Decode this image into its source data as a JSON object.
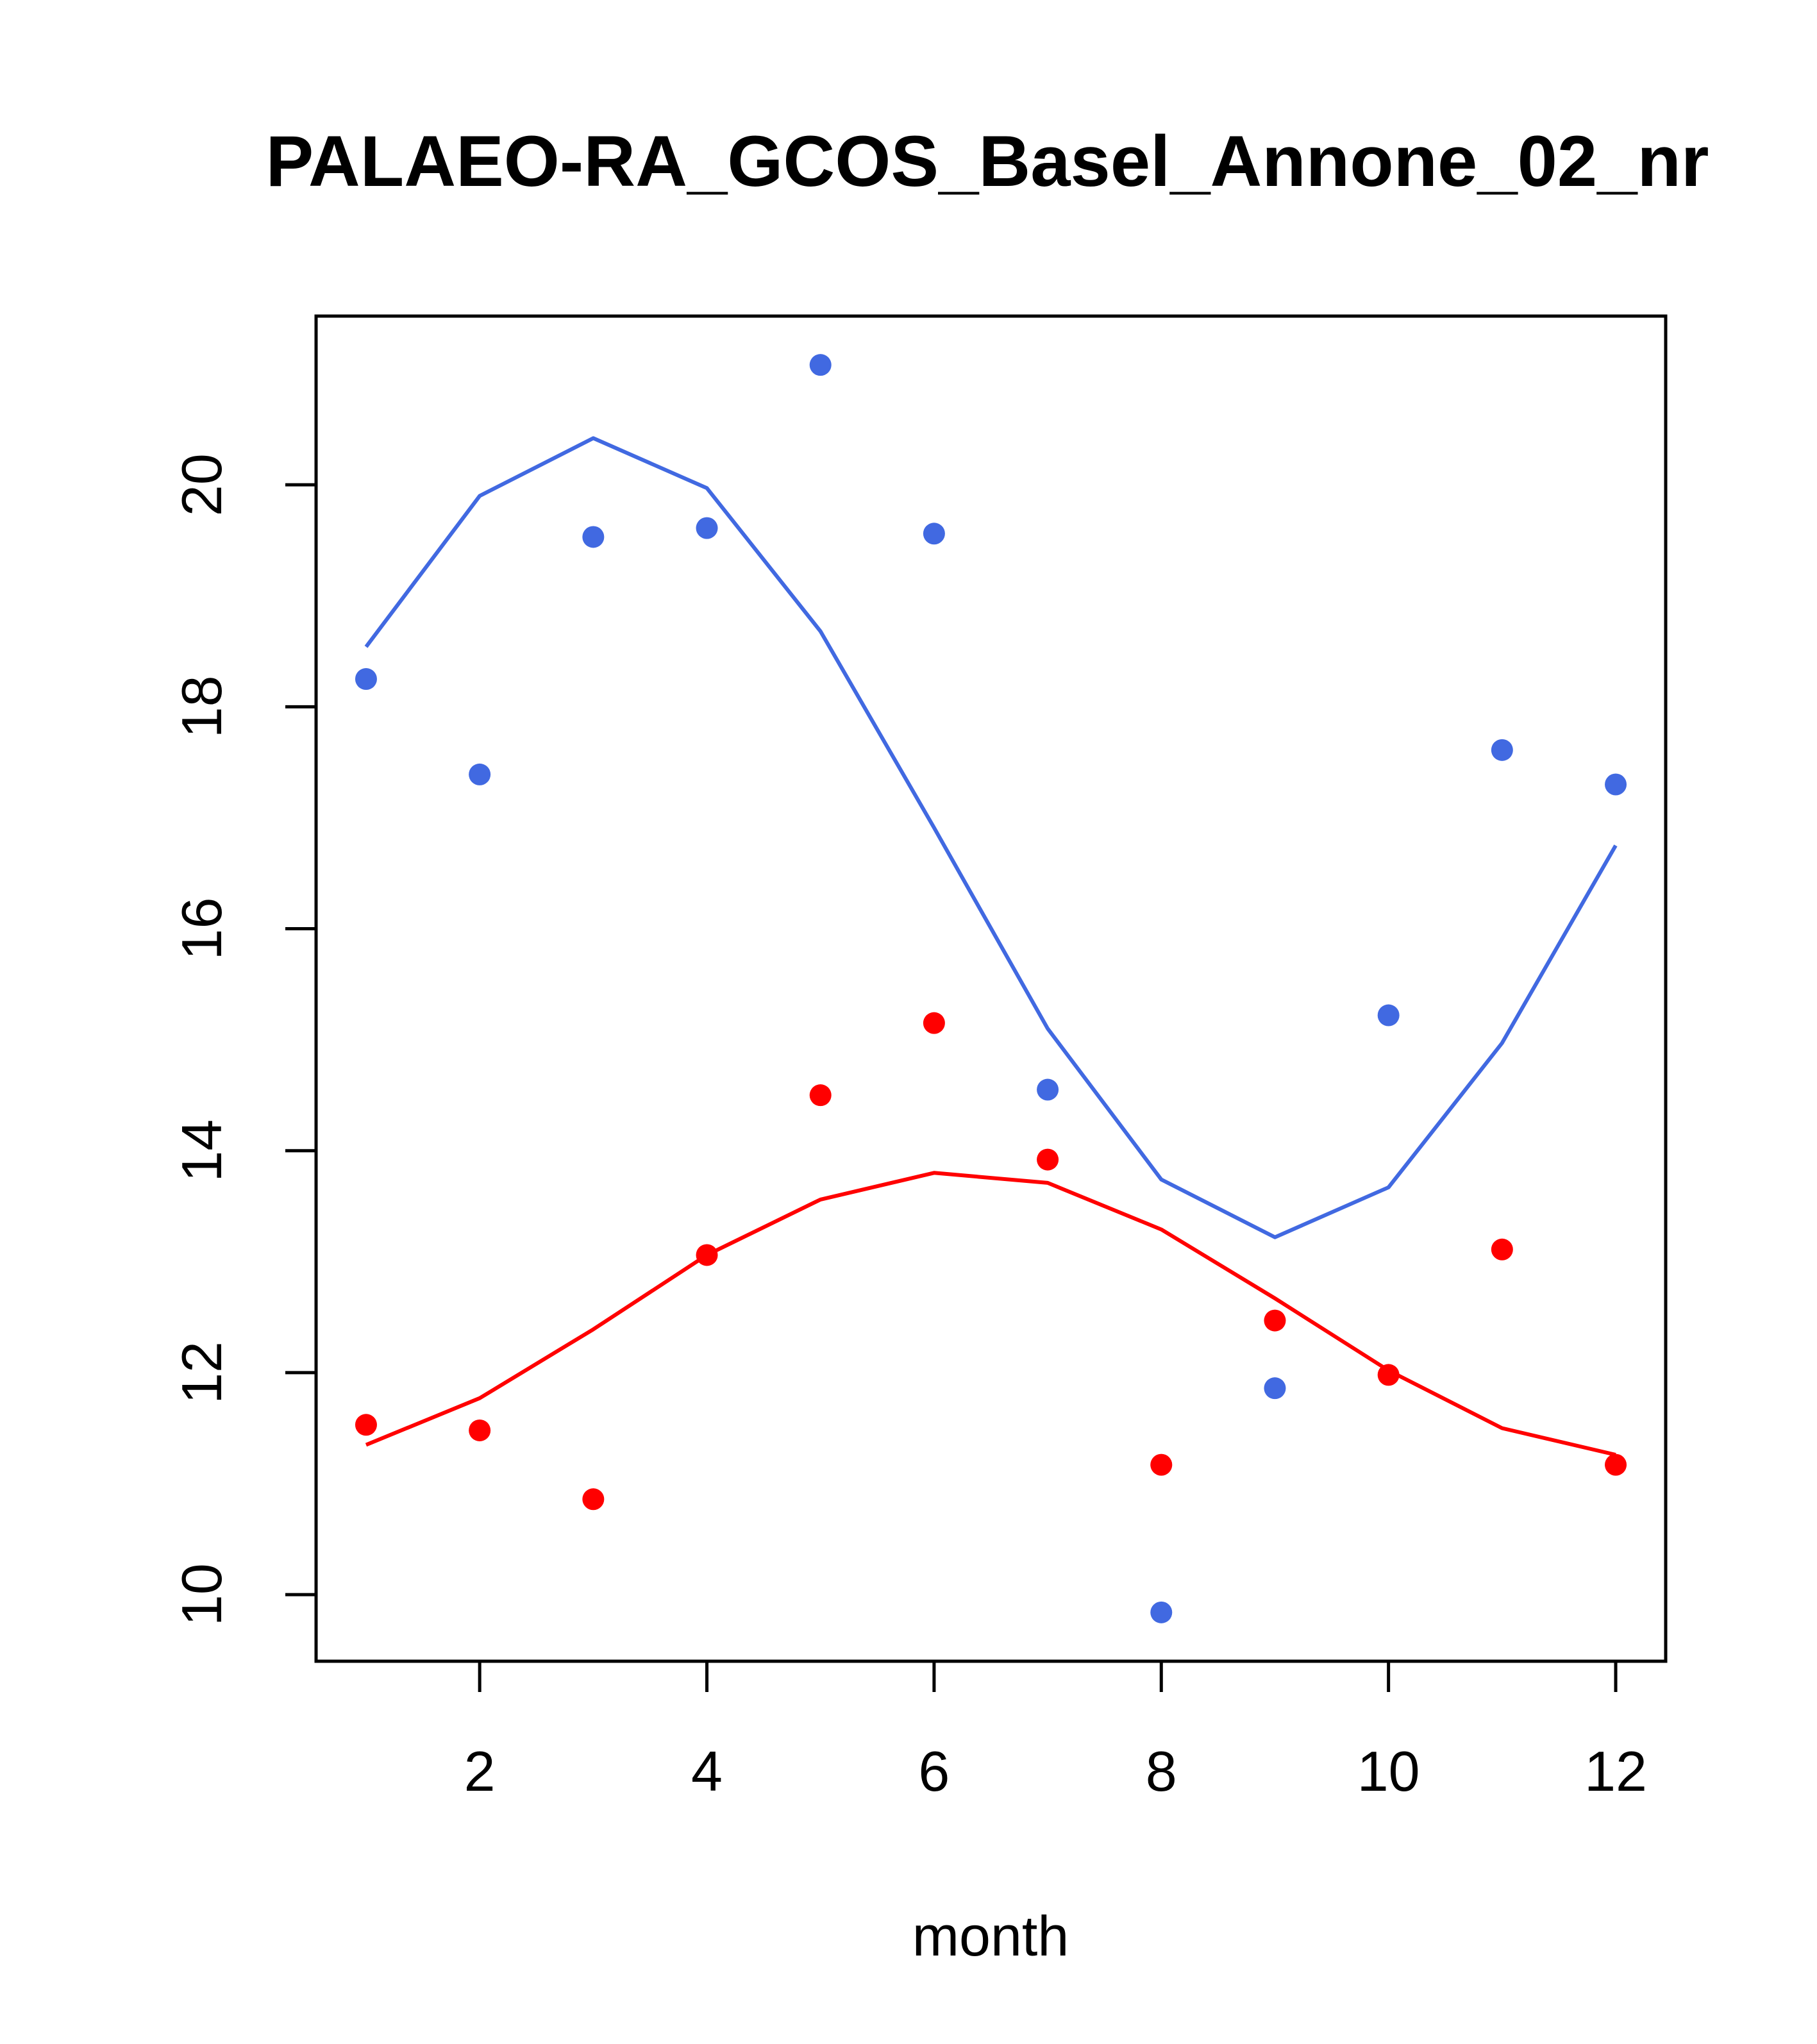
{
  "chart_data": {
    "type": "scatter",
    "title": "PALAEO-RA_GCOS_Basel_Annone_02_nr",
    "xlabel": "month",
    "ylabel": "",
    "xlim": [
      0.56,
      12.44
    ],
    "ylim": [
      9.4,
      21.52
    ],
    "x_ticks": [
      2,
      4,
      6,
      8,
      10,
      12
    ],
    "y_ticks": [
      10,
      12,
      14,
      16,
      18,
      20
    ],
    "grid": false,
    "series": [
      {
        "name": "blue points",
        "kind": "points",
        "color": "#4169E1",
        "x": [
          1,
          2,
          3,
          4,
          5,
          6,
          7,
          8,
          9,
          10,
          11,
          12
        ],
        "values": [
          18.25,
          17.39,
          19.53,
          19.61,
          21.08,
          19.56,
          14.55,
          9.84,
          11.86,
          15.22,
          17.61,
          17.3
        ]
      },
      {
        "name": "blue fit",
        "kind": "line",
        "color": "#4169E1",
        "x": [
          1,
          2,
          3,
          4,
          5,
          6,
          7,
          8,
          9,
          10,
          11,
          12
        ],
        "values": [
          18.54,
          19.9,
          20.42,
          19.97,
          18.68,
          16.91,
          15.1,
          13.74,
          13.22,
          13.67,
          14.97,
          16.75
        ]
      },
      {
        "name": "red points",
        "kind": "points",
        "color": "#FF0000",
        "x": [
          1,
          2,
          3,
          4,
          5,
          6,
          7,
          8,
          9,
          10,
          11,
          12
        ],
        "values": [
          11.53,
          11.48,
          10.86,
          13.06,
          14.5,
          15.15,
          13.92,
          11.17,
          12.47,
          11.98,
          13.11,
          11.17
        ]
      },
      {
        "name": "red fit",
        "kind": "line",
        "color": "#FF0000",
        "x": [
          1,
          2,
          3,
          4,
          5,
          6,
          7,
          8,
          9,
          10,
          11,
          12
        ],
        "values": [
          11.35,
          11.77,
          12.39,
          13.06,
          13.56,
          13.8,
          13.71,
          13.29,
          12.67,
          12.02,
          11.5,
          11.26
        ]
      }
    ]
  }
}
